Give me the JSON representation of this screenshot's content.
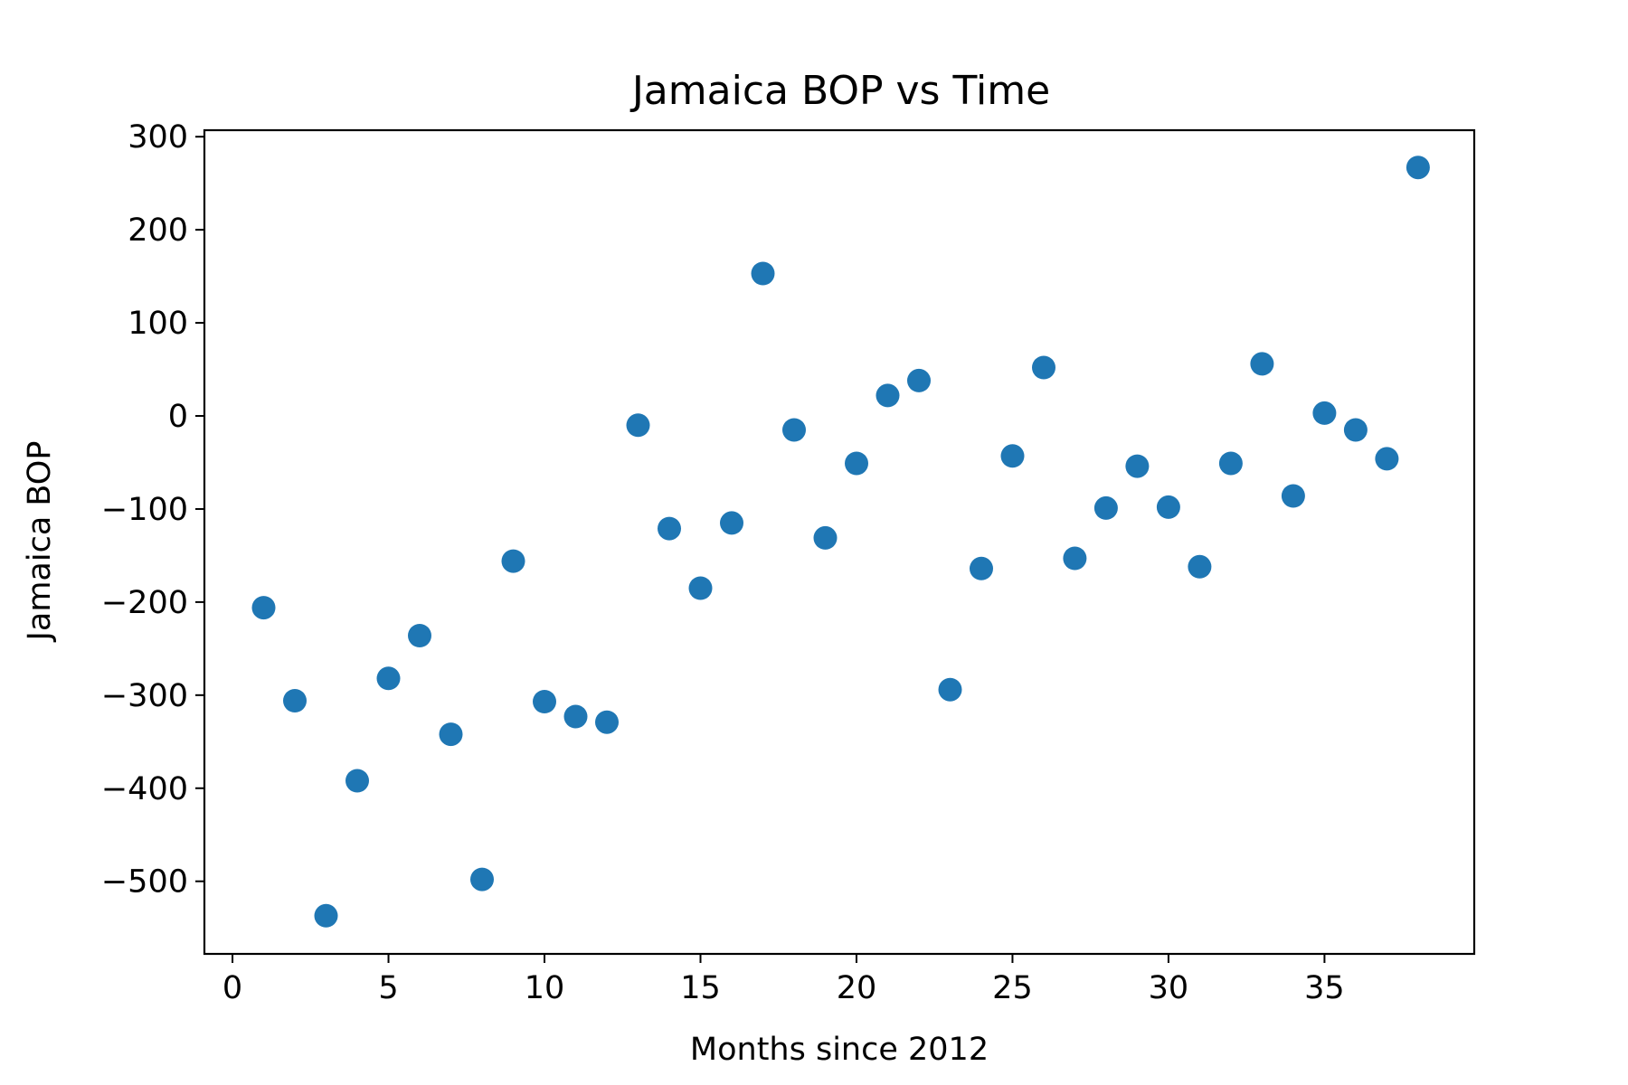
{
  "chart_data": {
    "type": "scatter",
    "title": "Jamaica BOP vs Time",
    "xlabel": "Months since 2012",
    "ylabel": "Jamaica BOP",
    "xlim": [
      -0.9,
      39.8
    ],
    "ylim": [
      -578,
      307
    ],
    "xticks": [
      0,
      5,
      10,
      15,
      20,
      25,
      30,
      35
    ],
    "xtick_labels": [
      "0",
      "5",
      "10",
      "15",
      "20",
      "25",
      "30",
      "35"
    ],
    "yticks": [
      300,
      200,
      100,
      0,
      -100,
      -200,
      -300,
      -400,
      -500
    ],
    "ytick_labels": [
      "300",
      "200",
      "100",
      "0",
      "−100",
      "−200",
      "−300",
      "−400",
      "−500"
    ],
    "grid": false,
    "marker_color": "#1f77b4",
    "points": [
      {
        "x": 1,
        "y": -206
      },
      {
        "x": 2,
        "y": -306
      },
      {
        "x": 3,
        "y": -537
      },
      {
        "x": 4,
        "y": -392
      },
      {
        "x": 5,
        "y": -282
      },
      {
        "x": 6,
        "y": -236
      },
      {
        "x": 7,
        "y": -342
      },
      {
        "x": 8,
        "y": -498
      },
      {
        "x": 9,
        "y": -156
      },
      {
        "x": 10,
        "y": -307
      },
      {
        "x": 11,
        "y": -323
      },
      {
        "x": 12,
        "y": -329
      },
      {
        "x": 13,
        "y": -10
      },
      {
        "x": 14,
        "y": -121
      },
      {
        "x": 15,
        "y": -185
      },
      {
        "x": 16,
        "y": -115
      },
      {
        "x": 17,
        "y": 153
      },
      {
        "x": 18,
        "y": -15
      },
      {
        "x": 19,
        "y": -131
      },
      {
        "x": 20,
        "y": -51
      },
      {
        "x": 21,
        "y": 22
      },
      {
        "x": 22,
        "y": 38
      },
      {
        "x": 23,
        "y": -294
      },
      {
        "x": 24,
        "y": -164
      },
      {
        "x": 25,
        "y": -43
      },
      {
        "x": 26,
        "y": 52
      },
      {
        "x": 27,
        "y": -153
      },
      {
        "x": 28,
        "y": -99
      },
      {
        "x": 29,
        "y": -54
      },
      {
        "x": 30,
        "y": -98
      },
      {
        "x": 31,
        "y": -162
      },
      {
        "x": 32,
        "y": -51
      },
      {
        "x": 33,
        "y": 56
      },
      {
        "x": 34,
        "y": -86
      },
      {
        "x": 35,
        "y": 3
      },
      {
        "x": 36,
        "y": -15
      },
      {
        "x": 37,
        "y": -46
      },
      {
        "x": 38,
        "y": 267
      }
    ]
  }
}
